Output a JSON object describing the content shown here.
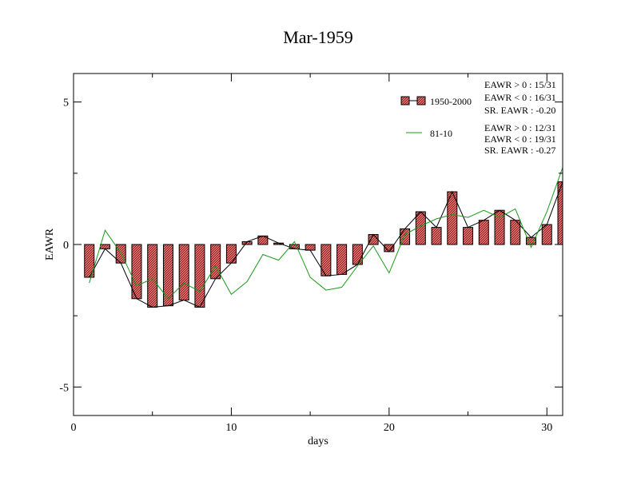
{
  "chart_data": {
    "type": "bar",
    "title": "Mar-1959",
    "xlabel": "days",
    "ylabel": "EAWR",
    "xlim": [
      0,
      31
    ],
    "ylim": [
      -6,
      6
    ],
    "x_ticks": [
      0,
      10,
      20,
      30
    ],
    "y_ticks": [
      -5,
      0,
      5
    ],
    "grid": false,
    "legend_position": "top-right",
    "colors": {
      "bar_fill": "#e06b6b",
      "bar_hatch": "#7a1d1d",
      "line_1950": "#000000",
      "line_8110": "#1a9a1a"
    },
    "days": [
      1,
      2,
      3,
      4,
      5,
      6,
      7,
      8,
      9,
      10,
      11,
      12,
      13,
      14,
      15,
      16,
      17,
      18,
      19,
      20,
      21,
      22,
      23,
      24,
      25,
      26,
      27,
      28,
      29,
      30,
      31
    ],
    "series": [
      {
        "name": "1950-2000",
        "values": [
          -1.15,
          -0.15,
          -0.65,
          -1.9,
          -2.2,
          -2.15,
          -1.95,
          -2.2,
          -1.2,
          -0.65,
          0.1,
          0.3,
          0.05,
          -0.15,
          -0.2,
          -1.1,
          -1.05,
          -0.7,
          0.35,
          -0.25,
          0.55,
          1.15,
          0.6,
          1.85,
          0.6,
          0.85,
          1.2,
          0.85,
          0.25,
          0.7,
          2.2
        ]
      },
      {
        "name": "81-10",
        "values": [
          -1.35,
          0.5,
          -0.3,
          -1.45,
          -1.2,
          -1.9,
          -1.35,
          -1.65,
          -0.75,
          -1.75,
          -1.3,
          -0.35,
          -0.55,
          0.1,
          -1.15,
          -1.6,
          -1.5,
          -0.75,
          -0.05,
          -1.0,
          0.35,
          0.65,
          0.9,
          1.05,
          0.95,
          1.2,
          0.95,
          1.25,
          -0.1,
          1.15,
          2.7
        ]
      }
    ],
    "stats_1950_2000": [
      "EAWR > 0 : 15/31",
      "EAWR < 0 : 16/31",
      "SR. EAWR : -0.20"
    ],
    "stats_81_10": [
      "EAWR > 0 : 12/31",
      "EAWR < 0 : 19/31",
      "SR. EAWR : -0.27"
    ]
  }
}
